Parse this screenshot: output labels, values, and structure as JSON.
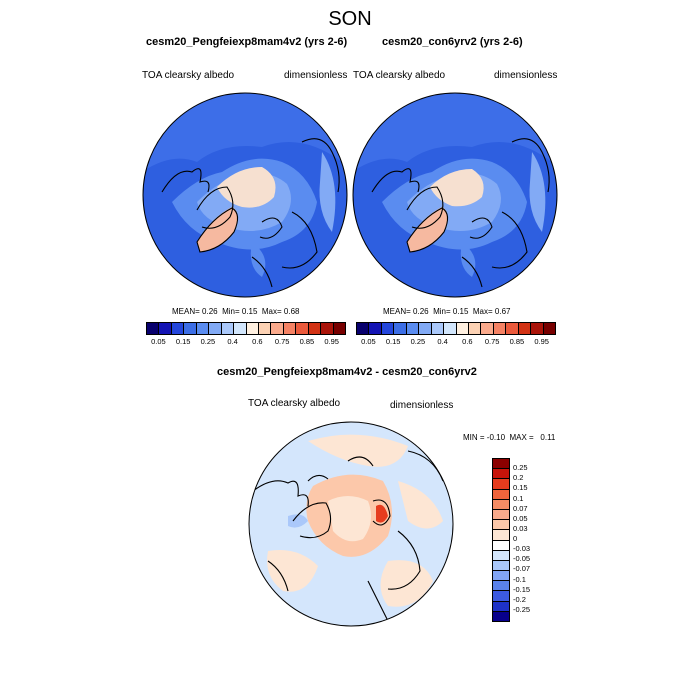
{
  "figure": {
    "title": "SON"
  },
  "panels": [
    {
      "title": "cesm20_Pengfeiexp8mam4v2 (yrs 2-6)",
      "left_label": "TOA clearsky albedo",
      "right_label": "dimensionless",
      "stats": {
        "mean_label": "MEAN=",
        "mean": "0.26",
        "min_label": "Min=",
        "min": "0.15",
        "max_label": "Max=",
        "max": "0.68"
      }
    },
    {
      "title": "cesm20_con6yrv2 (yrs 2-6)",
      "left_label": "TOA clearsky albedo",
      "right_label": "dimensionless",
      "stats": {
        "mean_label": "MEAN=",
        "mean": "0.26",
        "min_label": "Min=",
        "min": "0.15",
        "max_label": "Max=",
        "max": "0.67"
      }
    },
    {
      "title": "cesm20_Pengfeiexp8mam4v2 - cesm20_con6yrv2",
      "left_label": "TOA clearsky albedo",
      "right_label": "dimensionless",
      "stats": {
        "min_label": "MIN =",
        "min": "-0.10",
        "max_label": "MAX =",
        "max": "0.11"
      }
    }
  ],
  "colorbars": {
    "horizontal": {
      "tick_labels": [
        "0.05",
        "0.15",
        "0.25",
        "0.4",
        "0.6",
        "0.75",
        "0.85",
        "0.95"
      ],
      "colors": [
        "#08006e",
        "#1414b4",
        "#2346dc",
        "#3c6ee6",
        "#5a8cf0",
        "#82aaf5",
        "#aac8fa",
        "#d2e6fc",
        "#fff0e0",
        "#fcd2b4",
        "#faaa8c",
        "#f58264",
        "#eb5a3c",
        "#d23214",
        "#aa140a",
        "#780000"
      ]
    },
    "vertical": {
      "tick_labels": [
        "0.25",
        "0.2",
        "0.15",
        "0.1",
        "0.07",
        "0.05",
        "0.03",
        "0",
        "-0.03",
        "-0.05",
        "-0.07",
        "-0.1",
        "-0.15",
        "-0.2",
        "-0.25"
      ],
      "colors": [
        "#8c0000",
        "#c8140a",
        "#e63c1e",
        "#f0643c",
        "#f58c64",
        "#f8aa8c",
        "#fcc8aa",
        "#fde6d4",
        "#ffffff",
        "#d4e6fc",
        "#aac8fa",
        "#82a5f5",
        "#5a82eb",
        "#3c5ae1",
        "#1e32c8",
        "#08008c"
      ]
    }
  }
}
